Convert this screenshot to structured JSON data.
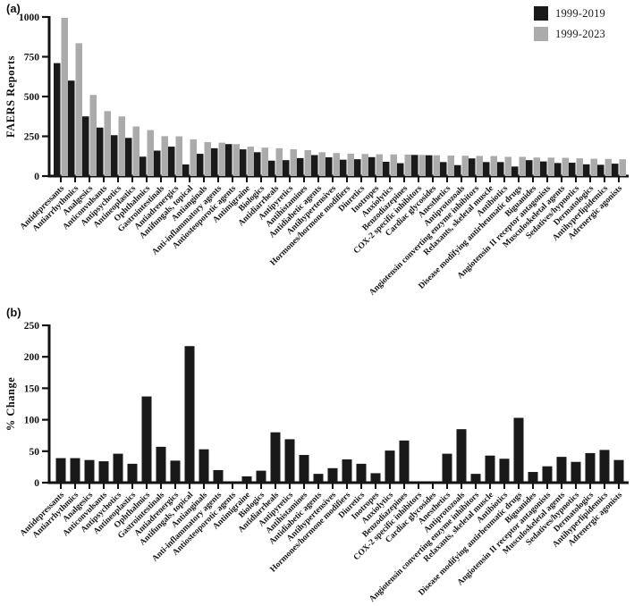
{
  "figure": {
    "panel_a_label": "(a)",
    "panel_b_label": "(b)",
    "background": "#ffffff",
    "axis_color": "#111111"
  },
  "chart_data": [
    {
      "type": "bar",
      "panel_label": "(a)",
      "ylabel": "FAERS Reports",
      "xlabel": "",
      "ylim": [
        0,
        1000
      ],
      "yticks": [
        0,
        250,
        500,
        750,
        1000
      ],
      "grid": false,
      "legend_position": "top-right",
      "categories": [
        "Antidepressants",
        "Antiarrhythmics",
        "Analgesics",
        "Anticonvulsants",
        "Antipsychotics",
        "Antineoplastics",
        "Ophthalmics",
        "Gastrointestinals",
        "Antiadrenergics",
        "Antifungals, topical",
        "Antianginals",
        "Anti-inflammatory agents",
        "Antiosteoporotic agents",
        "Antimigraine",
        "Biologics",
        "Antidiarrheals",
        "Antipyretics",
        "Antihistamines",
        "Antidiabetic agents",
        "Antihypertensives",
        "Hormones/hormone modifiers",
        "Diuretics",
        "Inotropes",
        "Anxiolytics",
        "Benzodiazepines",
        "COX-2 specific inhibitors",
        "Cardiac glycosides",
        "Anesthetics",
        "Antiprotozoals",
        "Angiotensin converting enzyme inhibitors",
        "Relaxants, skeletal muscle",
        "Antibiotics",
        "Disease modifying antirheumatic drugs",
        "Biguanides",
        "Angiotensin II receptor antagonists",
        "Musculoskeletal agents",
        "Sedatives/hypnotics",
        "Dermatologics",
        "Antihyperlipidemics",
        "Adrenergic agonists"
      ],
      "series": [
        {
          "name": "1999-2019",
          "color": "#191919",
          "values": [
            710,
            600,
            375,
            305,
            257,
            240,
            122,
            160,
            185,
            73,
            140,
            175,
            201,
            168,
            150,
            97,
            100,
            113,
            132,
            118,
            103,
            106,
            119,
            90,
            81,
            133,
            131,
            88,
            69,
            111,
            88,
            88,
            60,
            100,
            92,
            82,
            84,
            74,
            71,
            78
          ]
        },
        {
          "name": "1999-2023",
          "color": "#ababab",
          "values": [
            995,
            835,
            510,
            408,
            375,
            312,
            289,
            251,
            250,
            231,
            214,
            210,
            201,
            185,
            179,
            175,
            169,
            163,
            150,
            145,
            141,
            139,
            137,
            136,
            135,
            133,
            131,
            129,
            128,
            127,
            126,
            121,
            121,
            117,
            116,
            115,
            112,
            109,
            108,
            106
          ]
        }
      ]
    },
    {
      "type": "bar",
      "panel_label": "(b)",
      "ylabel": "% Change",
      "xlabel": "",
      "ylim": [
        0,
        250
      ],
      "yticks": [
        0,
        50,
        100,
        150,
        200,
        250
      ],
      "grid": false,
      "legend_position": "none",
      "categories": [
        "Antidepressants",
        "Antiarrhythmics",
        "Analgesics",
        "Anticonvulsants",
        "Antipsychotics",
        "Antineoplastics",
        "Ophthalmics",
        "Gastrointestinals",
        "Antiadrenergics",
        "Antifungals, topical",
        "Antianginals",
        "Anti-inflammatory agents",
        "Antiosteoporotic agents",
        "Antimigraine",
        "Biologics",
        "Antidiarrheals",
        "Antipyretics",
        "Antihistamines",
        "Antidiabetic agents",
        "Antihypertensives",
        "Hormones/hormone modifiers",
        "Diuretics",
        "Inotropes",
        "Anxiolytics",
        "Benzodiazepines",
        "COX-2 specific inhibitors",
        "Cardiac glycosides",
        "Anesthetics",
        "Antiprotozoals",
        "Angiotensin converting enzyme inhibitors",
        "Relaxants, skeletal muscle",
        "Antibiotics",
        "Disease modifying antirheumatic drugs",
        "Biguanides",
        "Angiotensin II receptor antagonists",
        "Musculoskeletal agents",
        "Sedatives/hypnotics",
        "Dermatologics",
        "Antihyperlipidemics",
        "Adrenergic agonists"
      ],
      "series": [
        {
          "name": "% Change",
          "color": "#191919",
          "values": [
            39,
            39,
            36,
            34,
            46,
            30,
            137,
            57,
            35,
            217,
            53,
            20,
            0,
            10,
            19,
            80,
            69,
            44,
            14,
            23,
            37,
            30,
            15,
            51,
            67,
            0,
            0,
            46,
            85,
            14,
            43,
            38,
            103,
            17,
            26,
            41,
            33,
            47,
            52,
            36
          ]
        }
      ]
    }
  ]
}
